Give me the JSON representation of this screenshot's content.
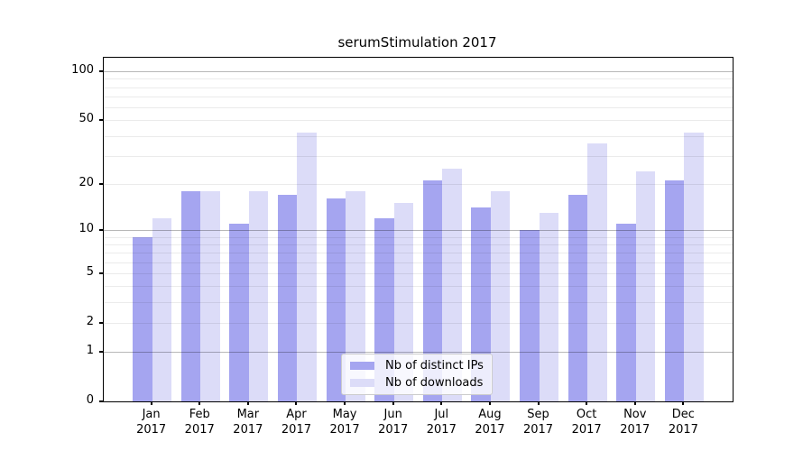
{
  "title": "serumStimulation 2017",
  "colors": {
    "ips_bar": "#a5a5f0",
    "downloads_bar": "#dcdcf8",
    "grid_major": "rgba(0,0,0,0.28)",
    "grid_minor": "rgba(0,0,0,0.08)",
    "axis": "#000000",
    "legend_border": "#cccccc"
  },
  "chart_data": {
    "type": "bar",
    "scale": "log1p",
    "title": "serumStimulation 2017",
    "categories": [
      "Jan",
      "Feb",
      "Mar",
      "Apr",
      "May",
      "Jun",
      "Jul",
      "Aug",
      "Sep",
      "Oct",
      "Nov",
      "Dec"
    ],
    "year_label": "2017",
    "series": [
      {
        "name": "Nb of distinct IPs",
        "color": "#a5a5f0",
        "values": [
          9,
          18,
          11,
          17,
          16,
          12,
          21,
          14,
          10,
          17,
          11,
          21
        ]
      },
      {
        "name": "Nb of downloads",
        "color": "#dcdcf8",
        "values": [
          12,
          18,
          18,
          42,
          18,
          15,
          25,
          18,
          13,
          36,
          24,
          42
        ]
      }
    ],
    "y_ticks": [
      0,
      1,
      2,
      5,
      10,
      20,
      50,
      100
    ],
    "y_minor_gridlines": [
      2,
      3,
      4,
      5,
      6,
      7,
      8,
      9,
      20,
      30,
      40,
      50,
      60,
      70,
      80,
      90
    ],
    "y_major_gridlines": [
      1,
      10,
      100
    ],
    "ylim": [
      0,
      121.4
    ],
    "xlabel": "",
    "ylabel": "",
    "grid": true,
    "legend_position": "lower center"
  }
}
